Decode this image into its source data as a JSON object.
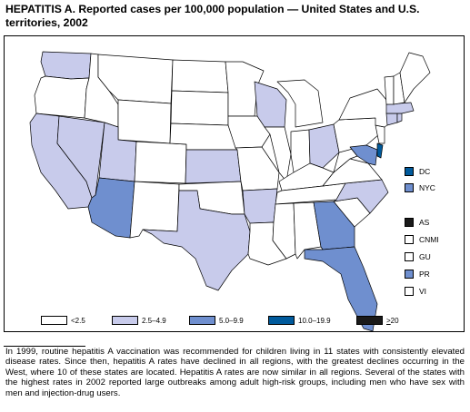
{
  "title": "HEPATITIS A. Reported cases per 100,000 population — United States and U.S. territories, 2002",
  "colors": {
    "lt_2_5": "#ffffff",
    "r2_5_4_9": "#c8cbeb",
    "r5_0_9_9": "#6f8fcf",
    "r10_0_19_9": "#005a9c",
    "ge_20": "#1a1a1a"
  },
  "legend": [
    {
      "label": "<2.5",
      "color": "#ffffff"
    },
    {
      "label": "2.5–4.9",
      "color": "#c8cbeb"
    },
    {
      "label": "5.0–9.9",
      "color": "#6f8fcf"
    },
    {
      "label": "10.0–19.9",
      "color": "#005a9c"
    },
    {
      "label_prefix": "",
      "label_underlined": ">",
      "label_suffix": "20",
      "color": "#1a1a1a"
    }
  ],
  "territories": [
    {
      "name": "DC",
      "color": "#005a9c"
    },
    {
      "name": "NYC",
      "color": "#6f8fcf"
    },
    {
      "name": "AS",
      "color": "#1a1a1a"
    },
    {
      "name": "CNMI",
      "color": "#ffffff"
    },
    {
      "name": "GU",
      "color": "#ffffff"
    },
    {
      "name": "PR",
      "color": "#6f8fcf"
    },
    {
      "name": "VI",
      "color": "#ffffff"
    }
  ],
  "caption": "In 1999, routine hepatitis A vaccination was recommended for children living in 11 states with consistently elevated disease rates. Since then, hepatitis A rates have declined in all regions, with the greatest declines occurring in the West, where 10 of these states are located. Hepatitis A rates are now similar in all regions. Several of the states with the highest rates in 2002 reported large outbreaks among adult high-risk groups, including men who have sex with men and injection-drug users."
}
